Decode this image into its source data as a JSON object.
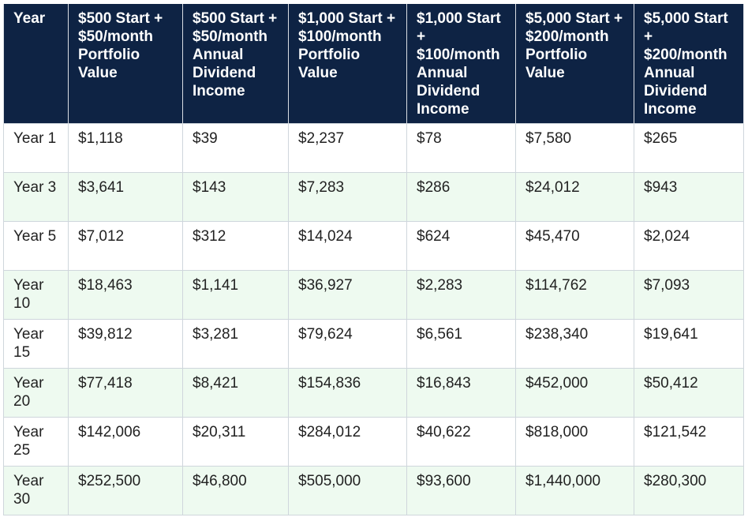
{
  "table": {
    "headers": [
      "Year",
      "$500 Start + $50/month Portfolio Value",
      "$500 Start + $50/month Annual Dividend Income",
      "$1,000 Start + $100/month Portfolio Value",
      "$1,000 Start + $100/month Annual Dividend Income",
      "$5,000 Start + $200/month Portfolio Value",
      "$5,000 Start + $200/month Annual Dividend Income"
    ],
    "rows": [
      [
        "Year 1",
        "$1,118",
        "$39",
        "$2,237",
        "$78",
        "$7,580",
        "$265"
      ],
      [
        "Year 3",
        "$3,641",
        "$143",
        "$7,283",
        "$286",
        "$24,012",
        "$943"
      ],
      [
        "Year 5",
        "$7,012",
        "$312",
        "$14,024",
        "$624",
        "$45,470",
        "$2,024"
      ],
      [
        "Year 10",
        "$18,463",
        "$1,141",
        "$36,927",
        "$2,283",
        "$114,762",
        "$7,093"
      ],
      [
        "Year 15",
        "$39,812",
        "$3,281",
        "$79,624",
        "$6,561",
        "$238,340",
        "$19,641"
      ],
      [
        "Year 20",
        "$77,418",
        "$8,421",
        "$154,836",
        "$16,843",
        "$452,000",
        "$50,412"
      ],
      [
        "Year 25",
        "$142,006",
        "$20,311",
        "$284,012",
        "$40,622",
        "$818,000",
        "$121,542"
      ],
      [
        "Year 30",
        "$252,500",
        "$46,800",
        "$505,000",
        "$93,600",
        "$1,440,000",
        "$280,300"
      ]
    ]
  },
  "colors": {
    "header_bg": "#0e2344",
    "header_text": "#ffffff",
    "row_alt_bg": "#eefaf0",
    "row_bg": "#ffffff",
    "border": "#cfd6dc"
  }
}
